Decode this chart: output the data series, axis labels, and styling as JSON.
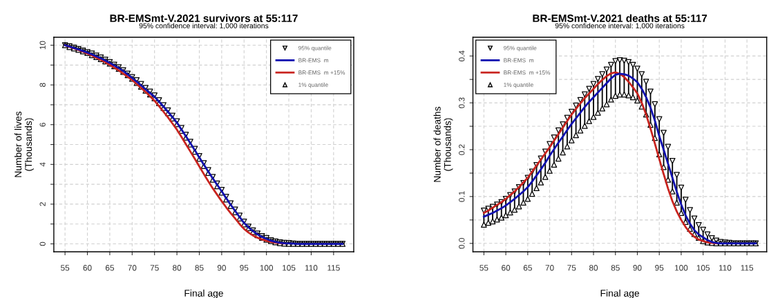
{
  "chart_data": [
    {
      "type": "line",
      "title": "BR-EMSmt-V.2021 survivors at 55:117",
      "subtitle": "95% confidence interval: 1,000 iterations",
      "xlabel": "Final age",
      "ylabel": "Number of lives\n(Thousands)",
      "x": [
        55,
        56,
        57,
        58,
        59,
        60,
        61,
        62,
        63,
        64,
        65,
        66,
        67,
        68,
        69,
        70,
        71,
        72,
        73,
        74,
        75,
        76,
        77,
        78,
        79,
        80,
        81,
        82,
        83,
        84,
        85,
        86,
        87,
        88,
        89,
        90,
        91,
        92,
        93,
        94,
        95,
        96,
        97,
        98,
        99,
        100,
        101,
        102,
        103,
        104,
        105,
        106,
        107,
        108,
        109,
        110,
        111,
        112,
        113,
        114,
        115,
        116,
        117
      ],
      "xlim": [
        52.5,
        119.5
      ],
      "xticks": [
        55,
        60,
        65,
        70,
        75,
        80,
        85,
        90,
        95,
        100,
        105,
        110,
        115
      ],
      "ylim": [
        -0.4,
        10.4
      ],
      "yticks": [
        0,
        {
          "value": 1,
          "label": null
        },
        2,
        {
          "value": 3,
          "label": null
        },
        4,
        {
          "value": 5,
          "label": null
        },
        6,
        {
          "value": 7,
          "label": null
        },
        8,
        {
          "value": 9,
          "label": null
        },
        10
      ],
      "grid": true,
      "legend": "top right",
      "series": [
        {
          "name": "95% quantile",
          "type": "scatter",
          "marker": "triangle-down",
          "color": "#000000",
          "values": [
            10.0,
            9.95,
            9.88,
            9.81,
            9.73,
            9.65,
            9.58,
            9.48,
            9.38,
            9.27,
            9.15,
            9.02,
            8.89,
            8.74,
            8.57,
            8.39,
            8.24,
            8.05,
            7.85,
            7.66,
            7.47,
            7.23,
            6.98,
            6.72,
            6.45,
            6.17,
            5.83,
            5.49,
            5.14,
            4.78,
            4.42,
            4.06,
            3.71,
            3.37,
            3.04,
            2.72,
            2.37,
            2.04,
            1.73,
            1.42,
            1.12,
            0.87,
            0.68,
            0.52,
            0.39,
            0.29,
            0.18,
            0.12,
            0.08,
            0.05,
            0.04,
            0.02,
            0,
            0,
            0,
            0,
            0,
            0,
            0,
            0,
            0,
            0,
            0
          ]
        },
        {
          "name": "BR-EMS  m",
          "color": "#1010b0",
          "values": [
            10.0,
            9.93,
            9.86,
            9.79,
            9.71,
            9.63,
            9.54,
            9.44,
            9.34,
            9.23,
            9.11,
            8.98,
            8.85,
            8.7,
            8.53,
            8.35,
            8.17,
            7.98,
            7.78,
            7.59,
            7.4,
            7.16,
            6.91,
            6.65,
            6.38,
            6.1,
            5.76,
            5.42,
            5.07,
            4.71,
            4.35,
            3.99,
            3.64,
            3.3,
            2.97,
            2.65,
            2.3,
            1.97,
            1.66,
            1.35,
            1.05,
            0.83,
            0.64,
            0.48,
            0.35,
            0.25,
            0.16,
            0.1,
            0.06,
            0.03,
            0.02,
            0.01,
            0,
            0,
            0,
            0,
            0,
            0,
            0,
            0,
            0,
            0,
            0
          ]
        },
        {
          "name": "BR-EMS  m +15%",
          "color": "#c8231e",
          "values": [
            10.0,
            9.92,
            9.84,
            9.76,
            9.67,
            9.58,
            9.48,
            9.37,
            9.26,
            9.14,
            9.01,
            8.87,
            8.73,
            8.57,
            8.41,
            8.25,
            8.05,
            7.85,
            7.65,
            7.43,
            7.2,
            6.93,
            6.65,
            6.37,
            6.06,
            5.75,
            5.39,
            5.02,
            4.65,
            4.28,
            3.9,
            3.52,
            3.15,
            2.8,
            2.47,
            2.15,
            1.84,
            1.55,
            1.28,
            1.0,
            0.75,
            0.57,
            0.42,
            0.31,
            0.22,
            0.15,
            0.1,
            0.06,
            0.04,
            0.02,
            null,
            null,
            null,
            null,
            null,
            null,
            null,
            null,
            null,
            null,
            null,
            null,
            null
          ]
        },
        {
          "name": "1% quantile",
          "type": "scatter",
          "marker": "triangle",
          "color": "#000000",
          "values": [
            10.0,
            9.91,
            9.84,
            9.77,
            9.69,
            9.61,
            9.5,
            9.4,
            9.3,
            9.19,
            9.07,
            8.94,
            8.81,
            8.66,
            8.49,
            8.31,
            8.1,
            7.91,
            7.71,
            7.52,
            7.33,
            7.09,
            6.84,
            6.58,
            6.31,
            6.03,
            5.69,
            5.35,
            5.0,
            4.64,
            4.28,
            3.92,
            3.57,
            3.23,
            2.9,
            2.58,
            2.23,
            1.9,
            1.59,
            1.28,
            0.98,
            0.79,
            0.6,
            0.44,
            0.31,
            0.21,
            0.14,
            0.08,
            0.04,
            0.01,
            0,
            0,
            0,
            0,
            0,
            0,
            0,
            0,
            0,
            0,
            0,
            0,
            0
          ]
        }
      ]
    },
    {
      "type": "line",
      "title": "BR-EMSmt-V.2021 deaths at 55:117",
      "subtitle": "95% confidence interval: 1,000 iterations",
      "xlabel": "Final age",
      "ylabel": "Number of deaths\n(Thousands)",
      "x": [
        55,
        56,
        57,
        58,
        59,
        60,
        61,
        62,
        63,
        64,
        65,
        66,
        67,
        68,
        69,
        70,
        71,
        72,
        73,
        74,
        75,
        76,
        77,
        78,
        79,
        80,
        81,
        82,
        83,
        84,
        85,
        86,
        87,
        88,
        89,
        90,
        91,
        92,
        93,
        94,
        95,
        96,
        97,
        98,
        99,
        100,
        101,
        102,
        103,
        104,
        105,
        106,
        107,
        108,
        109,
        110,
        111,
        112,
        113,
        114,
        115,
        116,
        117
      ],
      "xlim": [
        52.5,
        119.5
      ],
      "xticks": [
        55,
        60,
        65,
        70,
        75,
        80,
        85,
        90,
        95,
        100,
        105,
        110,
        115
      ],
      "ylim": [
        -0.018,
        0.44
      ],
      "yticks": [
        {
          "value": 0,
          "label": "0.0"
        },
        {
          "value": 0.05,
          "label": null
        },
        0.1,
        {
          "value": 0.15,
          "label": null
        },
        0.2,
        {
          "value": 0.25,
          "label": null
        },
        0.3,
        {
          "value": 0.35,
          "label": null
        },
        0.4
      ],
      "grid": true,
      "legend": "top left",
      "series": [
        {
          "name": "95% quantile",
          "type": "scatter",
          "marker": "triangle-down",
          "color": "#000000",
          "values": [
            0.07,
            0.074,
            0.078,
            0.083,
            0.088,
            0.095,
            0.103,
            0.111,
            0.12,
            0.129,
            0.14,
            0.153,
            0.167,
            0.181,
            0.196,
            0.212,
            0.226,
            0.241,
            0.254,
            0.268,
            0.281,
            0.294,
            0.306,
            0.318,
            0.33,
            0.34,
            0.351,
            0.361,
            0.371,
            0.381,
            0.389,
            0.391,
            0.39,
            0.387,
            0.381,
            0.373,
            0.361,
            0.345,
            0.324,
            0.297,
            0.265,
            0.236,
            0.206,
            0.176,
            0.146,
            0.119,
            0.093,
            0.071,
            0.053,
            0.039,
            0.029,
            0.019,
            0.011,
            0.006,
            0.003,
            0.002,
            0.001,
            0,
            0,
            0,
            0,
            0,
            0
          ]
        },
        {
          "name": "BR-EMS  m",
          "color": "#1010b0",
          "values": [
            0.057,
            0.061,
            0.065,
            0.07,
            0.075,
            0.081,
            0.088,
            0.095,
            0.103,
            0.111,
            0.12,
            0.132,
            0.145,
            0.158,
            0.172,
            0.187,
            0.201,
            0.215,
            0.228,
            0.242,
            0.255,
            0.267,
            0.279,
            0.291,
            0.302,
            0.312,
            0.322,
            0.332,
            0.342,
            0.352,
            0.36,
            0.362,
            0.361,
            0.358,
            0.352,
            0.344,
            0.33,
            0.312,
            0.29,
            0.262,
            0.229,
            0.2,
            0.17,
            0.14,
            0.11,
            0.083,
            0.06,
            0.042,
            0.028,
            0.019,
            0.013,
            0.007,
            0.003,
            0.001,
            0,
            0,
            0,
            0,
            0,
            0,
            0,
            0,
            0
          ],
          "errors": [
            [
              0.04,
              0.07
            ],
            [
              0.044,
              0.074
            ],
            [
              0.047,
              0.078
            ],
            [
              0.051,
              0.083
            ],
            [
              0.055,
              0.088
            ],
            [
              0.06,
              0.095
            ],
            [
              0.066,
              0.103
            ],
            [
              0.072,
              0.111
            ],
            [
              0.079,
              0.12
            ],
            [
              0.087,
              0.129
            ],
            [
              0.095,
              0.14
            ],
            [
              0.106,
              0.153
            ],
            [
              0.118,
              0.167
            ],
            [
              0.13,
              0.181
            ],
            [
              0.142,
              0.196
            ],
            [
              0.155,
              0.212
            ],
            [
              0.168,
              0.226
            ],
            [
              0.181,
              0.241
            ],
            [
              0.194,
              0.254
            ],
            [
              0.207,
              0.268
            ],
            [
              0.22,
              0.281
            ],
            [
              0.231,
              0.294
            ],
            [
              0.241,
              0.306
            ],
            [
              0.251,
              0.318
            ],
            [
              0.261,
              0.33
            ],
            [
              0.27,
              0.34
            ],
            [
              0.279,
              0.351
            ],
            [
              0.288,
              0.361
            ],
            [
              0.297,
              0.371
            ],
            [
              0.307,
              0.381
            ],
            [
              0.315,
              0.389
            ],
            [
              0.318,
              0.391
            ],
            [
              0.318,
              0.39
            ],
            [
              0.316,
              0.387
            ],
            [
              0.312,
              0.381
            ],
            [
              0.305,
              0.373
            ],
            [
              0.292,
              0.361
            ],
            [
              0.275,
              0.345
            ],
            [
              0.253,
              0.324
            ],
            [
              0.225,
              0.297
            ],
            [
              0.19,
              0.265
            ],
            [
              0.163,
              0.236
            ],
            [
              0.136,
              0.206
            ],
            [
              0.111,
              0.176
            ],
            [
              0.087,
              0.146
            ],
            [
              0.065,
              0.119
            ],
            [
              0.046,
              0.093
            ],
            [
              0.031,
              0.071
            ],
            [
              0.02,
              0.053
            ],
            [
              0.012,
              0.039
            ],
            [
              0.005,
              0.029
            ],
            [
              0.002,
              0.019
            ],
            [
              0.001,
              0.011
            ],
            null,
            null,
            null,
            null,
            null,
            null,
            null,
            null,
            null,
            null
          ]
        },
        {
          "name": "BR-EMS  m +15%",
          "color": "#c8231e",
          "values": [
            0.065,
            0.07,
            0.076,
            0.082,
            0.088,
            0.095,
            0.103,
            0.111,
            0.12,
            0.13,
            0.14,
            0.153,
            0.166,
            0.179,
            0.192,
            0.205,
            0.219,
            0.233,
            0.247,
            0.261,
            0.275,
            0.287,
            0.299,
            0.31,
            0.32,
            0.33,
            0.34,
            0.349,
            0.357,
            0.363,
            0.365,
            0.362,
            0.355,
            0.345,
            0.333,
            0.32,
            0.3,
            0.275,
            0.245,
            0.213,
            0.18,
            0.148,
            0.117,
            0.09,
            0.068,
            0.05,
            0.035,
            0.023,
            0.014,
            0.008,
            0.005,
            0.002,
            0.001,
            0,
            null,
            null,
            null,
            null,
            null,
            null,
            null,
            null,
            null
          ]
        },
        {
          "name": "1% quantile",
          "type": "scatter",
          "marker": "triangle",
          "color": "#000000",
          "values": [
            0.04,
            0.044,
            0.047,
            0.051,
            0.055,
            0.06,
            0.066,
            0.072,
            0.079,
            0.087,
            0.095,
            0.106,
            0.118,
            0.13,
            0.142,
            0.155,
            0.168,
            0.181,
            0.194,
            0.207,
            0.22,
            0.231,
            0.241,
            0.251,
            0.261,
            0.27,
            0.279,
            0.288,
            0.297,
            0.307,
            0.315,
            0.318,
            0.318,
            0.316,
            0.312,
            0.305,
            0.292,
            0.275,
            0.253,
            0.225,
            0.19,
            0.163,
            0.136,
            0.111,
            0.087,
            0.065,
            0.046,
            0.031,
            0.02,
            0.012,
            0.005,
            0.002,
            0.001,
            0,
            0,
            0,
            0,
            0,
            0,
            0,
            0,
            0,
            0
          ]
        }
      ]
    }
  ]
}
